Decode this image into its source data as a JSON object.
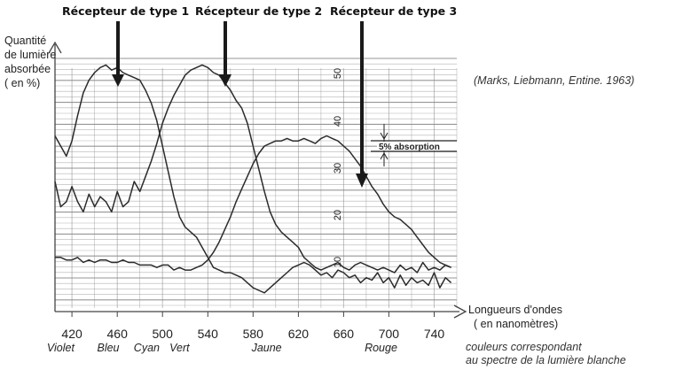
{
  "chart_data": {
    "type": "line",
    "title": "",
    "xlabel": [
      "Longueurs d'ondes",
      "( en nanomètres)"
    ],
    "ylabel": [
      "Quantité",
      "de lumière",
      "absorbée",
      "( en %)"
    ],
    "xlim": [
      405,
      760
    ],
    "ylim": [
      0,
      100
    ],
    "grid": true,
    "x_ticks": [
      420,
      460,
      500,
      540,
      580,
      620,
      660,
      700,
      740
    ],
    "x_tick_labels": [
      "420",
      "460",
      "500",
      "540",
      "580",
      "620",
      "660",
      "700",
      "740"
    ],
    "color_bands": [
      {
        "label": "Violet",
        "x": 410
      },
      {
        "label": "Bleu",
        "x": 452
      },
      {
        "label": "Cyan",
        "x": 486
      },
      {
        "label": "Vert",
        "x": 515
      },
      {
        "label": "Jaune",
        "x": 592
      },
      {
        "label": "Rouge",
        "x": 693
      }
    ],
    "series": [
      {
        "name": "Récepteur de type 1",
        "x": [
          405,
          410,
          415,
          420,
          425,
          430,
          435,
          440,
          445,
          450,
          455,
          460,
          465,
          470,
          475,
          480,
          485,
          490,
          495,
          500,
          505,
          510,
          515,
          520,
          525,
          530,
          535,
          540,
          545,
          550,
          555,
          560,
          565,
          570,
          575,
          580,
          585,
          590,
          595,
          600,
          605,
          610,
          615,
          620,
          625,
          630,
          635,
          640,
          645,
          650,
          655,
          660,
          665,
          670,
          675,
          680,
          685,
          690,
          695,
          700,
          705,
          710,
          715,
          720,
          725,
          730,
          735,
          740,
          745,
          750,
          755
        ],
        "y": [
          68,
          64,
          60,
          66,
          76,
          85,
          90,
          93,
          95,
          96,
          94,
          95,
          93,
          92,
          91,
          90,
          86,
          81,
          74,
          64,
          54,
          44,
          36,
          32,
          30,
          28,
          24,
          20,
          16,
          15,
          14,
          14,
          13,
          12,
          10,
          8,
          7,
          6,
          8,
          10,
          12,
          14,
          16,
          17,
          18,
          17,
          15,
          13,
          14,
          12,
          15,
          14,
          12,
          13,
          10,
          12,
          11,
          14,
          10,
          12,
          8,
          13,
          9,
          12,
          10,
          11,
          9,
          14,
          8,
          12,
          10
        ]
      },
      {
        "name": "Récepteur de type 2",
        "x": [
          405,
          410,
          415,
          420,
          425,
          430,
          435,
          440,
          445,
          450,
          455,
          460,
          465,
          470,
          475,
          480,
          485,
          490,
          495,
          500,
          505,
          510,
          515,
          520,
          525,
          530,
          535,
          540,
          545,
          550,
          555,
          560,
          565,
          570,
          575,
          580,
          585,
          590,
          595,
          600,
          605,
          610,
          615,
          620,
          625,
          630,
          635,
          640,
          645,
          650,
          655,
          660,
          665,
          670,
          675,
          680,
          685,
          690,
          695,
          700,
          705,
          710,
          715,
          720,
          725,
          730,
          735,
          740,
          745,
          750,
          755
        ],
        "y": [
          50,
          40,
          42,
          48,
          42,
          38,
          45,
          40,
          44,
          42,
          38,
          46,
          40,
          42,
          50,
          46,
          52,
          58,
          65,
          73,
          79,
          84,
          88,
          92,
          94,
          95,
          96,
          95,
          93,
          92,
          89,
          86,
          82,
          79,
          73,
          64,
          55,
          46,
          38,
          33,
          30,
          28,
          26,
          24,
          20,
          18,
          16,
          15,
          16,
          17,
          18,
          16,
          15,
          17,
          18,
          17,
          16,
          15,
          16,
          15,
          14,
          17,
          15,
          16,
          14,
          18,
          15,
          16,
          15,
          17,
          16
        ]
      },
      {
        "name": "Récepteur de type 3",
        "x": [
          405,
          410,
          415,
          420,
          425,
          430,
          435,
          440,
          445,
          450,
          455,
          460,
          465,
          470,
          475,
          480,
          485,
          490,
          495,
          500,
          505,
          510,
          515,
          520,
          525,
          530,
          535,
          540,
          545,
          550,
          555,
          560,
          565,
          570,
          575,
          580,
          585,
          590,
          595,
          600,
          605,
          610,
          615,
          620,
          625,
          630,
          635,
          640,
          645,
          650,
          655,
          660,
          665,
          670,
          675,
          680,
          685,
          690,
          695,
          700,
          705,
          710,
          715,
          720,
          725,
          730,
          735,
          740,
          745,
          750,
          755
        ],
        "y": [
          20,
          20,
          19,
          19,
          20,
          18,
          19,
          18,
          19,
          19,
          18,
          18,
          19,
          18,
          18,
          17,
          17,
          17,
          16,
          17,
          17,
          15,
          16,
          15,
          15,
          16,
          17,
          19,
          22,
          26,
          31,
          36,
          42,
          47,
          52,
          57,
          61,
          64,
          65,
          66,
          66,
          67,
          66,
          66,
          67,
          66,
          65,
          67,
          68,
          67,
          66,
          64,
          62,
          59,
          56,
          52,
          48,
          45,
          41,
          38,
          36,
          35,
          33,
          31,
          28,
          25,
          22,
          20,
          18,
          17,
          16
        ]
      }
    ],
    "annotations": {
      "credit": "(Marks, Liebmann, Entine. 1963)",
      "absorption": "5% absorption",
      "colors_note": [
        "couleurs correspondant",
        "au spectre de la lumière blanche"
      ],
      "scale_numbers": [
        "50",
        "40",
        "30",
        "20",
        "10"
      ]
    },
    "colors": {
      "curve": "#2b2b2b",
      "grid": "#8a8a8a",
      "arrow": "#1a1a1a"
    }
  }
}
